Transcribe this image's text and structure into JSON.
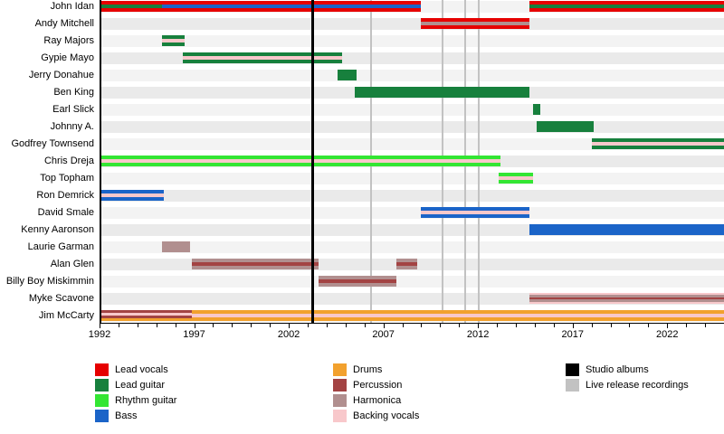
{
  "chart_data": {
    "type": "timeline",
    "x_axis": {
      "start": 1992,
      "end": 2025,
      "major_tick_years": [
        1992,
        1997,
        2002,
        2007,
        2012,
        2017,
        2022
      ],
      "minor_tick_interval": 1
    },
    "roles": {
      "lead_vocals": {
        "label": "Lead vocals",
        "color": "#e60000"
      },
      "lead_guitar": {
        "label": "Lead guitar",
        "color": "#17803d"
      },
      "rhythm_guitar": {
        "label": "Rhythm guitar",
        "color": "#33e633"
      },
      "bass": {
        "label": "Bass",
        "color": "#1b64c8"
      },
      "drums": {
        "label": "Drums",
        "color": "#f2a12e"
      },
      "percussion": {
        "label": "Percussion",
        "color": "#a34343"
      },
      "harmonica": {
        "label": "Harmonica",
        "color": "#b18f8f"
      },
      "backing_vocals": {
        "label": "Backing vocals",
        "color": "#f8c8cb"
      }
    },
    "events": {
      "studio_albums": {
        "label": "Studio albums",
        "color": "#000000",
        "years": [
          2003.1
        ]
      },
      "live_releases": {
        "label": "Live release recordings",
        "color": "#c2c2c2",
        "years": [
          2006.2,
          2010,
          2011.2,
          2011.9
        ]
      }
    },
    "legend_columns": [
      [
        "lead_vocals",
        "lead_guitar",
        "rhythm_guitar",
        "bass"
      ],
      [
        "drums",
        "percussion",
        "harmonica",
        "backing_vocals"
      ],
      [
        "studio_albums",
        "live_releases"
      ]
    ],
    "members": [
      {
        "name": "John Idan",
        "bars": [
          {
            "start": 1992,
            "end": 1995.2,
            "stripes": [
              "lead_vocals",
              "lead_guitar",
              "lead_vocals"
            ]
          },
          {
            "start": 1995.2,
            "end": 2008.9,
            "stripes": [
              "lead_vocals",
              "bass",
              "lead_vocals"
            ]
          },
          {
            "start": 2014.6,
            "end": "present",
            "stripes": [
              "lead_vocals",
              "lead_guitar",
              "lead_vocals"
            ]
          }
        ]
      },
      {
        "name": "Andy Mitchell",
        "bars": [
          {
            "start": 2008.9,
            "end": 2014.6,
            "stripes": [
              "lead_vocals",
              "harmonica",
              "lead_vocals"
            ]
          }
        ]
      },
      {
        "name": "Ray Majors",
        "bars": [
          {
            "start": 1995.2,
            "end": 1996.4,
            "stripes": [
              "lead_guitar",
              "backing_vocals",
              "lead_guitar"
            ]
          }
        ]
      },
      {
        "name": "Gypie Mayo",
        "bars": [
          {
            "start": 1996.3,
            "end": 2004.7,
            "stripes": [
              "lead_guitar",
              "backing_vocals",
              "lead_guitar"
            ]
          }
        ]
      },
      {
        "name": "Jerry Donahue",
        "bars": [
          {
            "start": 2004.5,
            "end": 2005.5,
            "stripes": [
              "lead_guitar"
            ]
          }
        ]
      },
      {
        "name": "Ben King",
        "bars": [
          {
            "start": 2005.4,
            "end": 2014.6,
            "stripes": [
              "lead_guitar"
            ]
          }
        ]
      },
      {
        "name": "Earl Slick",
        "bars": [
          {
            "start": 2014.8,
            "end": 2015.2,
            "stripes": [
              "lead_guitar"
            ]
          }
        ]
      },
      {
        "name": "Johnny A.",
        "bars": [
          {
            "start": 2015,
            "end": 2018,
            "stripes": [
              "lead_guitar"
            ]
          }
        ]
      },
      {
        "name": "Godfrey Townsend",
        "bars": [
          {
            "start": 2017.9,
            "end": "present",
            "stripes": [
              "lead_guitar",
              "backing_vocals",
              "lead_guitar"
            ]
          }
        ]
      },
      {
        "name": "Chris Dreja",
        "bars": [
          {
            "start": 1992,
            "end": 2013.1,
            "stripes": [
              "rhythm_guitar",
              "backing_vocals",
              "rhythm_guitar"
            ]
          }
        ]
      },
      {
        "name": "Top Topham",
        "bars": [
          {
            "start": 2013,
            "end": 2014.8,
            "stripes": [
              "rhythm_guitar",
              "backing_vocals",
              "rhythm_guitar"
            ]
          }
        ]
      },
      {
        "name": "Ron Demrick",
        "bars": [
          {
            "start": 1992,
            "end": 1995.3,
            "stripes": [
              "bass",
              "backing_vocals",
              "bass"
            ]
          }
        ]
      },
      {
        "name": "David Smale",
        "bars": [
          {
            "start": 2008.9,
            "end": 2014.6,
            "stripes": [
              "bass",
              "backing_vocals",
              "bass"
            ]
          }
        ]
      },
      {
        "name": "Kenny Aaronson",
        "bars": [
          {
            "start": 2014.6,
            "end": "present",
            "stripes": [
              "bass"
            ]
          }
        ]
      },
      {
        "name": "Laurie Garman",
        "bars": [
          {
            "start": 1995.2,
            "end": 1996.7,
            "stripes": [
              "harmonica"
            ]
          }
        ]
      },
      {
        "name": "Alan Glen",
        "bars": [
          {
            "start": 1996.8,
            "end": 2003.5,
            "stripes": [
              "harmonica",
              "percussion",
              "harmonica"
            ]
          },
          {
            "start": 2007.6,
            "end": 2008.7,
            "stripes": [
              "harmonica",
              "percussion",
              "harmonica"
            ]
          }
        ]
      },
      {
        "name": "Billy Boy Miskimmin",
        "bars": [
          {
            "start": 2003.5,
            "end": 2007.6,
            "stripes": [
              "harmonica",
              "percussion",
              "harmonica"
            ]
          }
        ]
      },
      {
        "name": "Myke Scavone",
        "bars": [
          {
            "start": 2014.6,
            "end": "present",
            "stripes": [
              "backing_vocals",
              "harmonica",
              "percussion",
              "harmonica",
              "backing_vocals"
            ]
          }
        ]
      },
      {
        "name": "Jim McCarty",
        "bars": [
          {
            "start": 1992,
            "end": 1996.8,
            "stripes": [
              "percussion",
              "backing_vocals",
              "percussion",
              "drums"
            ]
          },
          {
            "start": 1996.8,
            "end": "present",
            "stripes": [
              "drums",
              "backing_vocals",
              "drums"
            ]
          }
        ]
      }
    ]
  }
}
